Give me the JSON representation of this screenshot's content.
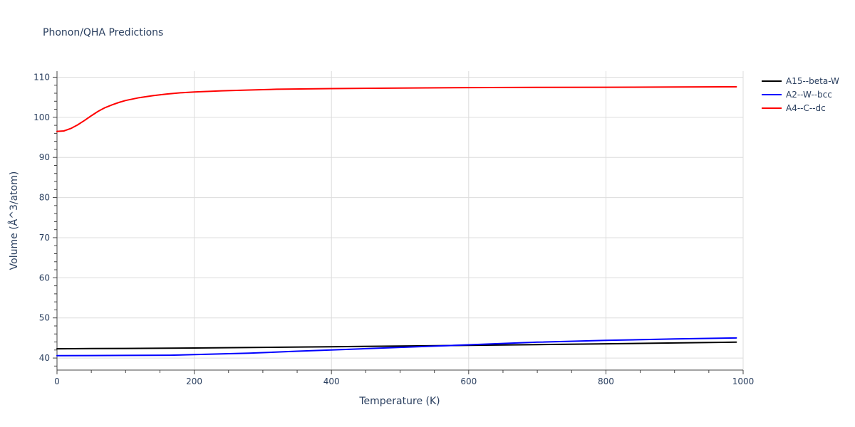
{
  "chart_data": {
    "type": "line",
    "title": "Phonon/QHA Predictions",
    "xlabel": "Temperature (K)",
    "ylabel": "Volume (Å^3/atom)",
    "xlim": [
      0,
      1000
    ],
    "ylim": [
      37,
      111.5
    ],
    "x_ticks": [
      0,
      200,
      400,
      600,
      800,
      1000
    ],
    "y_ticks": [
      40,
      50,
      60,
      70,
      80,
      90,
      100,
      110
    ],
    "x_minor_step": 50,
    "y_minor_step": 2,
    "grid": true,
    "legend_position": "top-right",
    "series": [
      {
        "name": "A15--beta-W",
        "color": "#000000",
        "x": [
          0,
          50,
          100,
          200,
          300,
          400,
          500,
          600,
          700,
          800,
          900,
          990
        ],
        "y": [
          42.3,
          42.35,
          42.4,
          42.5,
          42.65,
          42.8,
          43.0,
          43.15,
          43.35,
          43.55,
          43.75,
          43.95
        ]
      },
      {
        "name": "A2--W--bcc",
        "color": "#0000ff",
        "x": [
          0,
          50,
          100,
          165,
          200,
          280,
          350,
          400,
          500,
          600,
          700,
          800,
          900,
          990
        ],
        "y": [
          40.6,
          40.62,
          40.65,
          40.7,
          40.85,
          41.2,
          41.7,
          42.0,
          42.65,
          43.3,
          43.95,
          44.4,
          44.75,
          45.0
        ]
      },
      {
        "name": "A4--C--dc",
        "color": "#ff0000",
        "x": [
          0,
          10,
          20,
          30,
          40,
          50,
          60,
          70,
          80,
          90,
          100,
          120,
          140,
          160,
          180,
          200,
          240,
          280,
          320,
          400,
          500,
          600,
          700,
          800,
          900,
          990
        ],
        "y": [
          96.5,
          96.6,
          97.2,
          98.1,
          99.2,
          100.4,
          101.5,
          102.4,
          103.1,
          103.7,
          104.2,
          104.9,
          105.4,
          105.8,
          106.1,
          106.3,
          106.6,
          106.8,
          107.0,
          107.15,
          107.3,
          107.4,
          107.45,
          107.5,
          107.55,
          107.6
        ]
      }
    ]
  }
}
